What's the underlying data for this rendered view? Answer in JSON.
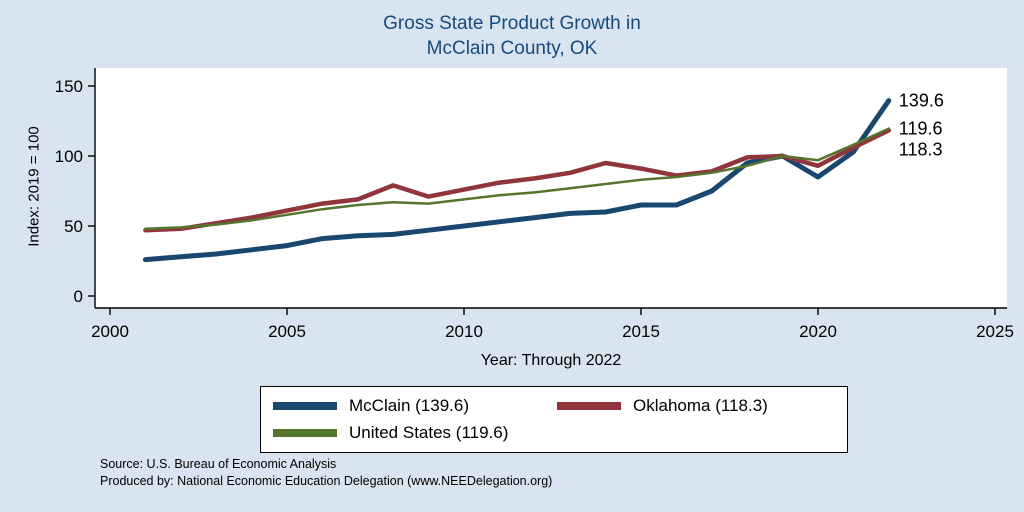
{
  "title": {
    "line1": "Gross State Product Growth in",
    "line2": "McClain County, OK"
  },
  "axes": {
    "y_label": "Index: 2019 = 100",
    "x_label": "Year: Through 2022",
    "y_ticks": [
      0,
      50,
      100,
      150
    ],
    "x_ticks": [
      2000,
      2005,
      2010,
      2015,
      2020,
      2025
    ]
  },
  "chart_data": {
    "type": "line",
    "title": "Gross State Product Growth in McClain County, OK",
    "xlabel": "Year: Through 2022",
    "ylabel": "Index: 2019 = 100",
    "xlim": [
      2000,
      2025
    ],
    "ylim": [
      0,
      150
    ],
    "grid": false,
    "legend_position": "bottom",
    "x": [
      2001,
      2002,
      2003,
      2004,
      2005,
      2006,
      2007,
      2008,
      2009,
      2010,
      2011,
      2012,
      2013,
      2014,
      2015,
      2016,
      2017,
      2018,
      2019,
      2020,
      2021,
      2022
    ],
    "series": [
      {
        "name": "McClain",
        "color": "#1a476f",
        "line_width": 5,
        "end_label": "139.6",
        "values": [
          26,
          28,
          30,
          33,
          36,
          41,
          43,
          44,
          47,
          50,
          53,
          56,
          59,
          60,
          65,
          65,
          75,
          95,
          100,
          85,
          103,
          139.6
        ]
      },
      {
        "name": "Oklahoma",
        "color": "#90353b",
        "line_width": 4.5,
        "end_label": "118.3",
        "values": [
          47,
          48,
          52,
          56,
          61,
          66,
          69,
          79,
          71,
          76,
          81,
          84,
          88,
          95,
          91,
          86,
          89,
          99,
          100,
          93,
          106,
          118.3
        ]
      },
      {
        "name": "United States",
        "color": "#55752f",
        "line_width": 2.5,
        "end_label": "119.6",
        "values": [
          48,
          49,
          51,
          54,
          58,
          62,
          65,
          67,
          66,
          69,
          72,
          74,
          77,
          80,
          83,
          85,
          88,
          93,
          100,
          97,
          108,
          119.6
        ]
      }
    ]
  },
  "legend": {
    "items": [
      {
        "label": "McClain  (139.6)",
        "color": "#1a476f"
      },
      {
        "label": "Oklahoma (118.3)",
        "color": "#90353b"
      },
      {
        "label": "United States (119.6)",
        "color": "#55752f"
      }
    ]
  },
  "notes": {
    "source": "Source: U.S. Bureau of Economic Analysis",
    "produced": "Produced by: National Economic Education Delegation (www.NEEDelegation.org)"
  },
  "colors": {
    "background": "#d8e4ef",
    "plot_bg": "#ffffff",
    "axis": "#000000",
    "title": "#174a7c"
  }
}
